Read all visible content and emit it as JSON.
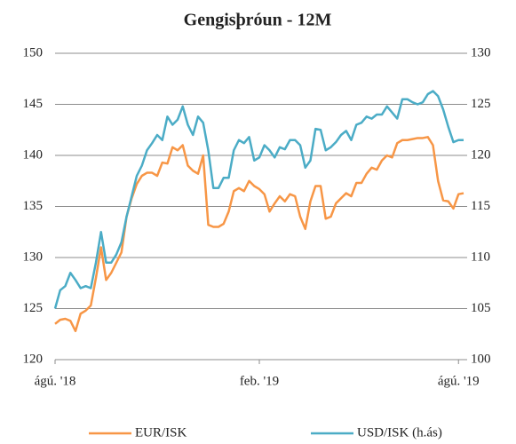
{
  "chart_data": {
    "type": "line",
    "title": "Gengisþróun - 12M",
    "categories": [
      "ágú. '18",
      null,
      null,
      null,
      null,
      null,
      null,
      null,
      null,
      null,
      null,
      null,
      null,
      null,
      null,
      null,
      null,
      null,
      null,
      null,
      null,
      null,
      null,
      null,
      null,
      null,
      null,
      null,
      null,
      null,
      null,
      null,
      null,
      null,
      null,
      null,
      null,
      null,
      null,
      null,
      "feb. '19",
      null,
      null,
      null,
      null,
      null,
      null,
      null,
      null,
      null,
      null,
      null,
      null,
      null,
      null,
      null,
      null,
      null,
      null,
      null,
      null,
      null,
      null,
      null,
      null,
      null,
      null,
      null,
      null,
      null,
      null,
      null,
      null,
      null,
      null,
      null,
      null,
      null,
      null,
      "ágú. '19",
      null
    ],
    "series": [
      {
        "name": "EUR/ISK",
        "color": "#f79646",
        "values": [
          123.5,
          123.9,
          124,
          123.8,
          122.8,
          124.5,
          124.8,
          125.3,
          128,
          131,
          127.8,
          128.5,
          129.5,
          130.5,
          134,
          135.8,
          137.2,
          138,
          138.3,
          138.3,
          138,
          139.3,
          139.2,
          140.8,
          140.5,
          141,
          139,
          138.5,
          138.2,
          140,
          133.2,
          133,
          133,
          133.3,
          134.5,
          136.5,
          136.8,
          136.5,
          137.5,
          137,
          136.7,
          136.2,
          134.5,
          135.3,
          136,
          135.5,
          136.2,
          136,
          134,
          132.8,
          135.5,
          137,
          137,
          133.8,
          134,
          135.3,
          135.8,
          136.3,
          136,
          137.3,
          137.3,
          138.2,
          138.8,
          138.6,
          139.5,
          140,
          139.8,
          141.2,
          141.5,
          141.5,
          141.6,
          141.7,
          141.7,
          141.8,
          141,
          137.5,
          135.6,
          135.5,
          134.8,
          136.2,
          136.3
        ]
      },
      {
        "name": "USD/ISK (h.ás)",
        "color": "#4bacc6",
        "axis": "y2",
        "values": [
          105,
          106.8,
          107.2,
          108.5,
          107.8,
          107,
          107.2,
          107,
          109.5,
          112.5,
          109.5,
          109.5,
          110.3,
          111.5,
          114,
          116,
          118,
          119,
          120.5,
          121.2,
          122,
          121.5,
          123.8,
          123,
          123.5,
          124.8,
          123,
          122,
          123.8,
          123.2,
          120.5,
          116.8,
          116.8,
          117.8,
          117.8,
          120.5,
          121.5,
          121.2,
          121.8,
          119.5,
          119.8,
          121,
          120.5,
          119.8,
          120.8,
          120.6,
          121.5,
          121.5,
          121,
          118.8,
          119.5,
          122.6,
          122.5,
          120.5,
          120.8,
          121.3,
          122,
          122.4,
          121.5,
          123,
          123.2,
          123.8,
          123.6,
          124,
          124,
          124.8,
          124.2,
          123.6,
          125.5,
          125.5,
          125.2,
          125,
          125.2,
          126,
          126.3,
          125.8,
          124.5,
          122.8,
          121.3,
          121.5,
          121.5
        ]
      }
    ],
    "ylim": [
      120,
      150
    ],
    "yticks": [
      120,
      125,
      130,
      135,
      140,
      145,
      150
    ],
    "y2lim": [
      100,
      130
    ],
    "y2ticks": [
      100,
      105,
      110,
      115,
      120,
      125,
      130
    ],
    "grid": true,
    "legend": "bottom"
  }
}
